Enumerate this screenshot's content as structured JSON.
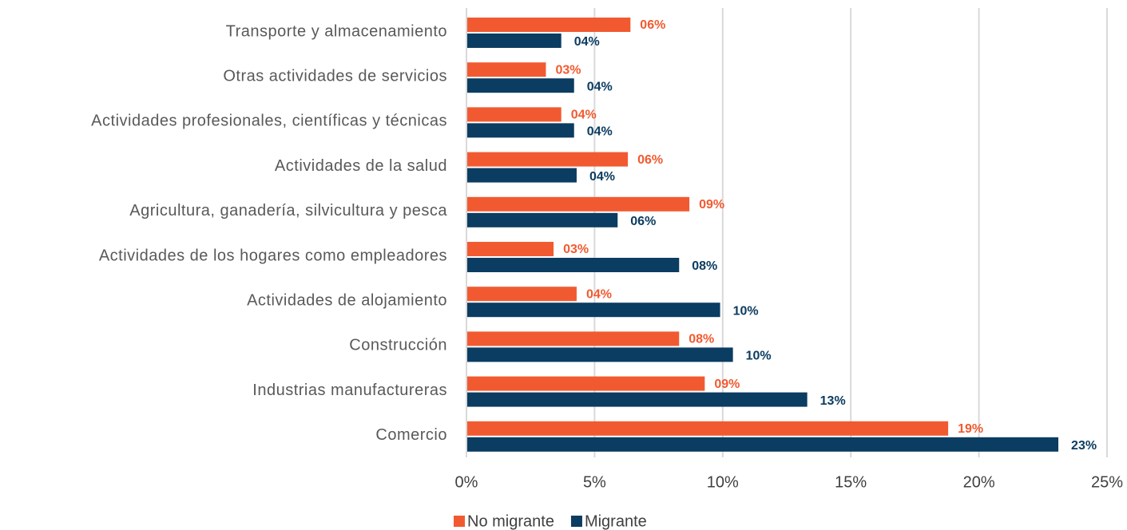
{
  "chart_data": {
    "type": "hbar",
    "categories": [
      "Transporte y almacenamiento",
      "Otras actividades de servicios",
      "Actividades profesionales, científicas y técnicas",
      "Actividades de la salud",
      "Agricultura, ganadería, silvicultura y pesca",
      "Actividades de los hogares como empleadores",
      "Actividades de alojamiento",
      "Construcción",
      "Industrias manufactureras",
      "Comercio"
    ],
    "series": [
      {
        "name": "No migrante",
        "color": "#f15a30",
        "values": [
          6.4,
          3.1,
          3.7,
          6.3,
          8.7,
          3.4,
          4.3,
          8.3,
          9.3,
          18.8
        ],
        "value_labels": [
          "06%",
          "03%",
          "04%",
          "06%",
          "09%",
          "03%",
          "04%",
          "08%",
          "09%",
          "19%"
        ]
      },
      {
        "name": "Migrante",
        "color": "#0b3c61",
        "values": [
          3.7,
          4.2,
          4.2,
          4.3,
          5.9,
          8.3,
          9.9,
          10.4,
          13.3,
          23.1
        ],
        "value_labels": [
          "04%",
          "04%",
          "04%",
          "04%",
          "06%",
          "08%",
          "10%",
          "10%",
          "13%",
          "23%"
        ]
      }
    ],
    "xlim": [
      0,
      25
    ],
    "xticks": [
      {
        "value": 0,
        "label": "0%"
      },
      {
        "value": 5,
        "label": "5%"
      },
      {
        "value": 10,
        "label": "10%"
      },
      {
        "value": 15,
        "label": "15%"
      },
      {
        "value": 20,
        "label": "20%"
      },
      {
        "value": 25,
        "label": "25%"
      }
    ],
    "grid": true,
    "legend": "bottom"
  }
}
